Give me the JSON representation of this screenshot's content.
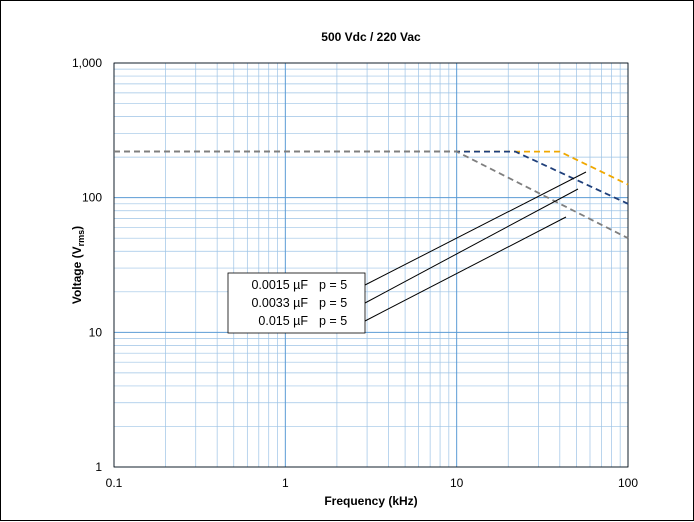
{
  "chart_data": {
    "type": "line",
    "title": "500 Vdc / 220 Vac",
    "xlabel": "Frequency (kHz)",
    "ylabel_main": "Voltage (V",
    "ylabel_sub": "rms",
    "ylabel_close": ")",
    "x_scale": "log",
    "y_scale": "log",
    "xlim": [
      0.1,
      100
    ],
    "ylim": [
      1,
      1000
    ],
    "x_ticks": [
      0.1,
      1,
      10,
      100
    ],
    "x_tick_labels": [
      "0.1",
      "1",
      "10",
      "100"
    ],
    "y_ticks": [
      1,
      10,
      100,
      1000
    ],
    "y_tick_labels": [
      "1",
      "10",
      "100",
      "1,000"
    ],
    "grid": true,
    "series": [
      {
        "name": "0.0015 µF   p = 5",
        "color": "#F0A800",
        "dash": true,
        "points": [
          [
            0.1,
            220
          ],
          [
            40,
            220
          ],
          [
            100,
            125
          ]
        ]
      },
      {
        "name": "0.0033 µF   p = 5",
        "color": "#1F3F7A",
        "dash": true,
        "points": [
          [
            0.1,
            220
          ],
          [
            22,
            220
          ],
          [
            100,
            90
          ]
        ]
      },
      {
        "name": "0.015 µF   p = 5",
        "color": "#7F7F7F",
        "dash": true,
        "points": [
          [
            0.1,
            220
          ],
          [
            10,
            220
          ],
          [
            100,
            50
          ]
        ]
      }
    ],
    "legend": {
      "placement": "center-left",
      "entries": [
        {
          "capacitance": "0.0015 µF",
          "p": "p = 5"
        },
        {
          "capacitance": "0.0033 µF",
          "p": "p = 5"
        },
        {
          "capacitance": "0.015 µF",
          "p": "p = 5"
        }
      ]
    }
  }
}
